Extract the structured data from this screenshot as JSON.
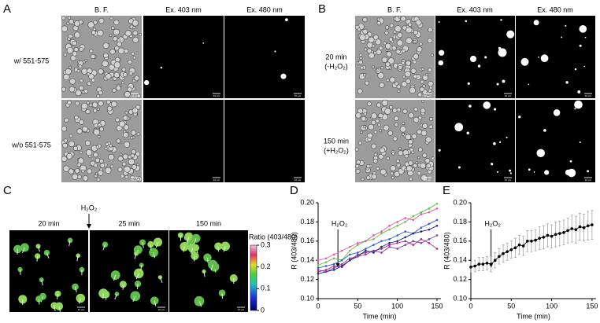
{
  "panel_a": {
    "label": "A",
    "columns": [
      "B. F.",
      "Ex. 403 nm",
      "Ex. 480 nm"
    ],
    "rows": [
      "w/ 551-575",
      "w/o 551-575"
    ]
  },
  "panel_b": {
    "label": "B",
    "columns": [
      "B. F.",
      "Ex. 403 nm",
      "Ex. 480 nm"
    ],
    "rows": [
      [
        "20 min",
        "(-H₂O₂)"
      ],
      [
        "150 min",
        "(+H₂O₂)"
      ]
    ]
  },
  "scale_bar": "10 µm",
  "panel_c": {
    "label": "C",
    "timepoints": [
      "20 min",
      "25 min",
      "150 min"
    ],
    "annotation": "H₂O₂",
    "colorbar": {
      "title": "Ratio (403/480)",
      "clim": [
        0,
        0.3
      ],
      "ticks": [
        0.3,
        0.2,
        0.1,
        0
      ]
    }
  },
  "chart_data": [
    {
      "type": "line",
      "label": "D",
      "xlabel": "Time (min)",
      "ylabel": "R (403/480)",
      "annotation": {
        "text": "H₂O₂",
        "x": 25
      },
      "x": [
        0,
        10,
        20,
        30,
        40,
        50,
        60,
        70,
        80,
        90,
        100,
        110,
        120,
        130,
        140,
        150
      ],
      "series": [
        {
          "color": "#6cc04a",
          "values": [
            0.135,
            0.138,
            0.142,
            0.14,
            0.15,
            0.156,
            0.16,
            0.162,
            0.168,
            0.172,
            0.176,
            0.18,
            0.186,
            0.19,
            0.194,
            0.199
          ]
        },
        {
          "color": "#b0208a",
          "values": [
            0.128,
            0.13,
            0.134,
            0.133,
            0.14,
            0.146,
            0.148,
            0.15,
            0.152,
            0.156,
            0.158,
            0.16,
            0.156,
            0.162,
            0.158,
            0.152
          ]
        },
        {
          "color": "#2f5fd0",
          "values": [
            0.132,
            0.134,
            0.136,
            0.14,
            0.146,
            0.148,
            0.152,
            0.156,
            0.16,
            0.162,
            0.166,
            0.17,
            0.168,
            0.174,
            0.178,
            0.182
          ]
        },
        {
          "color": "#1a237e",
          "values": [
            0.126,
            0.128,
            0.13,
            0.134,
            0.14,
            0.144,
            0.15,
            0.148,
            0.154,
            0.158,
            0.16,
            0.164,
            0.168,
            0.17,
            0.172,
            0.176
          ]
        },
        {
          "color": "#e05aa8",
          "values": [
            0.14,
            0.142,
            0.146,
            0.15,
            0.154,
            0.158,
            0.16,
            0.166,
            0.17,
            0.176,
            0.18,
            0.184,
            0.182,
            0.188,
            0.19,
            0.194
          ]
        },
        {
          "color": "#7b3fa0",
          "values": [
            0.13,
            0.128,
            0.132,
            0.136,
            0.142,
            0.144,
            0.146,
            0.15,
            0.148,
            0.154,
            0.152,
            0.156,
            0.16,
            0.158,
            0.162,
            0.166
          ]
        }
      ],
      "xlim": [
        0,
        155
      ],
      "xticks": [
        0,
        50,
        100,
        150
      ],
      "ylim": [
        0.1,
        0.2
      ],
      "yticks": [
        {
          "value": 0.1,
          "label": "0.10"
        },
        0.12,
        0.14,
        0.16,
        0.18,
        {
          "value": 0.2,
          "label": "0.20"
        }
      ]
    },
    {
      "type": "errorbar",
      "label": "E",
      "xlabel": "Time (min)",
      "ylabel": "R (403/480)",
      "annotation": {
        "text": "H₂O₂",
        "x": 25
      },
      "x": [
        0,
        5,
        10,
        15,
        20,
        25,
        30,
        35,
        40,
        45,
        50,
        55,
        60,
        65,
        70,
        75,
        80,
        85,
        90,
        95,
        100,
        105,
        110,
        115,
        120,
        125,
        130,
        135,
        140,
        145,
        150
      ],
      "series": [
        {
          "color": "#000000",
          "values": [
            0.133,
            0.134,
            0.136,
            0.136,
            0.137,
            0.136,
            0.14,
            0.144,
            0.147,
            0.149,
            0.151,
            0.153,
            0.156,
            0.155,
            0.16,
            0.16,
            0.161,
            0.163,
            0.164,
            0.166,
            0.165,
            0.167,
            0.168,
            0.169,
            0.171,
            0.173,
            0.172,
            0.175,
            0.174,
            0.176,
            0.177
          ],
          "errors": [
            0.006,
            0.006,
            0.007,
            0.007,
            0.007,
            0.008,
            0.008,
            0.008,
            0.009,
            0.009,
            0.009,
            0.01,
            0.01,
            0.01,
            0.011,
            0.011,
            0.011,
            0.012,
            0.012,
            0.012,
            0.012,
            0.013,
            0.013,
            0.013,
            0.013,
            0.014,
            0.014,
            0.014,
            0.014,
            0.015,
            0.015
          ]
        }
      ],
      "xlim": [
        0,
        155
      ],
      "xticks": [
        0,
        50,
        100,
        150
      ],
      "ylim": [
        0.1,
        0.2
      ],
      "yticks": [
        {
          "value": 0.1,
          "label": "0.10"
        },
        0.12,
        0.14,
        0.16,
        0.18,
        {
          "value": 0.2,
          "label": "0.20"
        }
      ]
    }
  ]
}
